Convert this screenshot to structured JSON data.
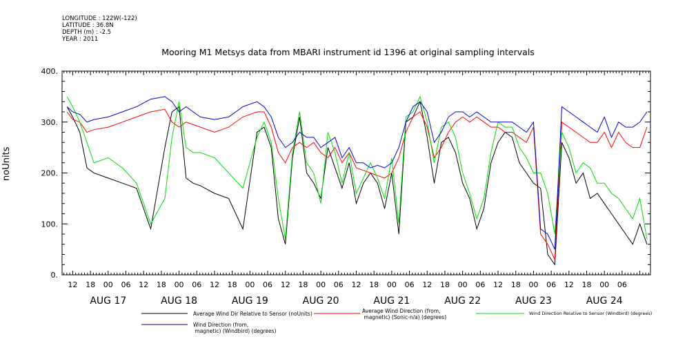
{
  "header": {
    "longitude": "LONGITUDE : 122W(-122)",
    "latitude": "LATITUDE : 36.8N",
    "depth": "DEPTH (m) : -2.5",
    "year": "YEAR : 2011"
  },
  "chart_data": {
    "type": "line",
    "title": "Mooring M1 Metsys data from MBARI instrument id 1396 at original sampling intervals",
    "ylabel": "noUnits",
    "xlabel": "",
    "ylim": [
      0,
      400
    ],
    "yticks": [
      0,
      100,
      200,
      300,
      400
    ],
    "xlim": [
      16.35,
      24.65
    ],
    "grid": false,
    "hour_ticks": [
      12,
      18,
      0,
      6,
      12,
      18,
      0,
      6,
      12,
      18,
      0,
      6,
      12,
      18,
      0,
      6,
      12,
      18,
      0,
      6,
      12,
      18,
      0,
      6,
      12,
      18,
      0,
      6,
      12,
      18,
      0,
      6
    ],
    "day_labels": [
      {
        "label": "AUG 17",
        "day": 17
      },
      {
        "label": "AUG 18",
        "day": 18
      },
      {
        "label": "AUG 19",
        "day": 19
      },
      {
        "label": "AUG 20",
        "day": 20
      },
      {
        "label": "AUG 21",
        "day": 21
      },
      {
        "label": "AUG 22",
        "day": 22
      },
      {
        "label": "AUG 23",
        "day": 23
      },
      {
        "label": "AUG 24",
        "day": 24
      }
    ],
    "x": [
      16.42,
      16.5,
      16.6,
      16.7,
      16.8,
      17.0,
      17.2,
      17.4,
      17.6,
      17.8,
      17.9,
      18.0,
      18.1,
      18.2,
      18.3,
      18.5,
      18.7,
      18.9,
      19.1,
      19.2,
      19.3,
      19.4,
      19.5,
      19.6,
      19.7,
      19.8,
      19.9,
      20.0,
      20.1,
      20.2,
      20.3,
      20.4,
      20.5,
      20.6,
      20.7,
      20.8,
      20.9,
      21.0,
      21.1,
      21.2,
      21.3,
      21.4,
      21.5,
      21.6,
      21.7,
      21.8,
      21.9,
      22.0,
      22.1,
      22.2,
      22.3,
      22.4,
      22.5,
      22.6,
      22.7,
      22.8,
      22.9,
      23.0,
      23.1,
      23.2,
      23.3,
      23.4,
      23.5,
      23.6,
      23.7,
      23.8,
      23.9,
      24.0,
      24.1,
      24.2,
      24.3,
      24.4,
      24.5,
      24.6
    ],
    "series": [
      {
        "name": "Average Wind Dir Relative to Sensor (noUnits)",
        "color": "#000000",
        "values": [
          330,
          310,
          280,
          210,
          200,
          190,
          180,
          170,
          90,
          250,
          320,
          330,
          190,
          180,
          175,
          160,
          150,
          90,
          280,
          290,
          250,
          110,
          60,
          230,
          310,
          200,
          180,
          150,
          250,
          210,
          170,
          220,
          140,
          180,
          200,
          180,
          130,
          200,
          80,
          300,
          310,
          340,
          270,
          180,
          260,
          270,
          240,
          180,
          150,
          90,
          130,
          220,
          260,
          280,
          270,
          220,
          200,
          180,
          170,
          40,
          20,
          260,
          230,
          180,
          200,
          150,
          160,
          140,
          120,
          100,
          80,
          60,
          100,
          60
        ]
      },
      {
        "name": "Average Wind Direction (from, magnetic) (Sonic-n/a) (degrees)",
        "color": "#ff0000",
        "values": [
          320,
          305,
          300,
          280,
          285,
          290,
          300,
          310,
          320,
          325,
          300,
          290,
          300,
          295,
          290,
          280,
          290,
          310,
          320,
          320,
          290,
          240,
          220,
          250,
          260,
          250,
          260,
          240,
          230,
          250,
          220,
          240,
          210,
          205,
          200,
          195,
          190,
          200,
          230,
          280,
          310,
          320,
          290,
          230,
          250,
          280,
          300,
          310,
          300,
          310,
          300,
          290,
          290,
          280,
          280,
          270,
          260,
          290,
          80,
          60,
          30,
          300,
          290,
          280,
          270,
          260,
          260,
          280,
          250,
          280,
          260,
          250,
          250,
          290
        ]
      },
      {
        "name": "Wind Direction Relative to Sensor (Windbird) (degrees)",
        "color": "#00dd00",
        "values": [
          350,
          330,
          300,
          260,
          220,
          230,
          210,
          180,
          100,
          150,
          270,
          340,
          250,
          240,
          240,
          230,
          200,
          170,
          270,
          300,
          260,
          150,
          70,
          240,
          320,
          220,
          200,
          140,
          280,
          240,
          180,
          240,
          160,
          190,
          220,
          190,
          150,
          230,
          100,
          310,
          320,
          350,
          300,
          220,
          290,
          300,
          270,
          200,
          160,
          110,
          150,
          240,
          300,
          290,
          290,
          250,
          230,
          200,
          200,
          160,
          80,
          280,
          250,
          200,
          220,
          210,
          180,
          180,
          160,
          150,
          130,
          110,
          150,
          70
        ]
      },
      {
        "name": "Wind Direction (from, magnetic) (Windbird) (degrees)",
        "color": "#0000cc",
        "values": [
          330,
          320,
          315,
          300,
          305,
          310,
          320,
          330,
          345,
          350,
          340,
          320,
          330,
          320,
          310,
          305,
          310,
          330,
          340,
          330,
          310,
          270,
          250,
          260,
          280,
          270,
          270,
          250,
          260,
          270,
          230,
          250,
          220,
          220,
          210,
          215,
          210,
          220,
          250,
          300,
          330,
          340,
          320,
          260,
          280,
          310,
          320,
          320,
          310,
          320,
          310,
          300,
          300,
          300,
          300,
          290,
          280,
          300,
          90,
          80,
          50,
          330,
          320,
          310,
          300,
          290,
          280,
          310,
          270,
          300,
          290,
          290,
          300,
          320
        ]
      }
    ],
    "legend": {
      "placement": "bottom"
    }
  }
}
